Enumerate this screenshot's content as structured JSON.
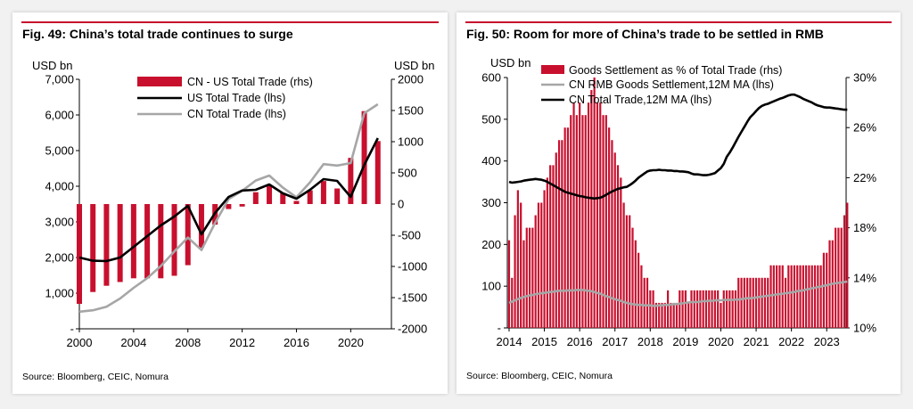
{
  "colors": {
    "accent": "#c8102e",
    "bar": "#c8102e",
    "black_line": "#000000",
    "grey_line": "#a6a6a6"
  },
  "panels": [
    {
      "title": "Fig. 49: China’s total trade continues to surge",
      "source": "Source: Bloomberg, CEIC, Nomura"
    },
    {
      "title": "Fig. 50: Room for more of China’s trade to be settled in RMB",
      "source": "Source: Bloomberg, CEIC, Nomura"
    }
  ],
  "chart_data": [
    {
      "type": "bar+line",
      "title": "Fig. 49: China’s total trade continues to surge",
      "y_left_label": "USD bn",
      "y_right_label": "USD bn",
      "y_left_ticks": [
        "-",
        "1,000",
        "2,000",
        "3,000",
        "4,000",
        "5,000",
        "6,000",
        "7,000"
      ],
      "y_right_ticks": [
        "-2000",
        "-1500",
        "-1000",
        "-500",
        "0",
        "500",
        "1000",
        "1500",
        "2000"
      ],
      "x_ticks": [
        "2000",
        "2004",
        "2008",
        "2012",
        "2016",
        "2020"
      ],
      "ylim_left": [
        0,
        7000
      ],
      "ylim_right": [
        -2000,
        2000
      ],
      "legend": [
        "CN - US Total Trade (rhs)",
        "US Total Trade (lhs)",
        "CN Total Trade (lhs)"
      ],
      "x": [
        2000,
        2001,
        2002,
        2003,
        2004,
        2005,
        2006,
        2007,
        2008,
        2009,
        2010,
        2011,
        2012,
        2013,
        2014,
        2015,
        2016,
        2017,
        2018,
        2019,
        2020,
        2021,
        2022
      ],
      "series": [
        {
          "name": "CN - US Total Trade (rhs)",
          "type": "bar",
          "axis": "right",
          "values": [
            -1600,
            -1410,
            -1310,
            -1250,
            -1190,
            -1190,
            -1190,
            -1150,
            -980,
            -700,
            -330,
            -80,
            -40,
            190,
            310,
            180,
            50,
            220,
            370,
            250,
            740,
            1490,
            1010
          ]
        },
        {
          "name": "US Total Trade (lhs)",
          "type": "line",
          "axis": "left",
          "values": [
            2000,
            1910,
            1900,
            2000,
            2300,
            2600,
            2900,
            3150,
            3450,
            2650,
            3250,
            3700,
            3880,
            3900,
            4050,
            3800,
            3650,
            3900,
            4200,
            4150,
            3700,
            4600,
            5350
          ]
        },
        {
          "name": "CN Total Trade (lhs)",
          "type": "line",
          "axis": "left",
          "values": [
            480,
            520,
            620,
            850,
            1150,
            1420,
            1760,
            2170,
            2560,
            2210,
            2970,
            3640,
            3870,
            4160,
            4300,
            3960,
            3690,
            4110,
            4620,
            4580,
            4650,
            6050,
            6300
          ]
        }
      ]
    },
    {
      "type": "bar+line",
      "title": "Fig. 50: Room for more of China’s trade to be settled in RMB",
      "y_left_label": "USD bn",
      "y_left_ticks": [
        "-",
        "100",
        "200",
        "300",
        "400",
        "500",
        "600"
      ],
      "y_right_ticks": [
        "10%",
        "14%",
        "18%",
        "22%",
        "26%",
        "30%"
      ],
      "x_ticks": [
        "2014",
        "2015",
        "2016",
        "2017",
        "2018",
        "2019",
        "2020",
        "2021",
        "2022",
        "2023"
      ],
      "ylim_left": [
        0,
        600
      ],
      "ylim_right": [
        10,
        30
      ],
      "legend": [
        "Goods Settlement as % of Total Trade (rhs)",
        "CN RMB Goods Settlement,12M MA (lhs)",
        "CN Total Trade,12M MA (lhs)"
      ],
      "x_start": 2014.0,
      "x_step": 0.08333,
      "series": [
        {
          "name": "Goods Settlement as % of Total Trade (rhs)",
          "type": "bar",
          "axis": "right",
          "values": [
            17,
            14,
            19,
            21,
            20,
            17,
            18,
            18,
            18,
            19,
            20,
            20,
            21,
            22,
            23,
            23,
            24,
            25,
            25,
            26,
            26,
            27,
            28,
            27,
            28,
            27,
            27,
            28,
            29,
            30,
            28,
            28,
            27,
            27,
            26,
            25,
            24,
            23,
            22,
            20,
            19,
            19,
            18,
            17,
            16,
            15,
            14,
            14,
            13,
            13,
            12,
            12,
            12,
            12,
            13,
            12,
            12,
            12,
            13,
            13,
            13,
            12,
            13,
            13,
            13,
            13,
            13,
            13,
            13,
            13,
            13,
            13,
            12,
            13,
            13,
            13,
            13,
            13,
            14,
            14,
            14,
            14,
            14,
            14,
            14,
            14,
            14,
            14,
            14,
            15,
            15,
            15,
            15,
            15,
            14,
            15,
            15,
            15,
            15,
            15,
            15,
            15,
            15,
            15,
            15,
            15,
            15,
            16,
            16,
            17,
            17,
            18,
            18,
            18,
            19,
            20
          ]
        },
        {
          "name": "CN RMB Goods Settlement,12M MA (lhs)",
          "type": "line",
          "axis": "left",
          "values": [
            60,
            63,
            66,
            69,
            72,
            74,
            76,
            78,
            79,
            81,
            82,
            83,
            84,
            85,
            86,
            87,
            88,
            89,
            89,
            89,
            90,
            90,
            90,
            91,
            91,
            91,
            90,
            89,
            88,
            86,
            84,
            82,
            79,
            76,
            74,
            71,
            69,
            67,
            65,
            62,
            60,
            58,
            57,
            56,
            55,
            55,
            54,
            54,
            54,
            53,
            53,
            54,
            54,
            55,
            55,
            56,
            57,
            57,
            58,
            59,
            60,
            61,
            62,
            62,
            62,
            63,
            64,
            64,
            65,
            65,
            66,
            66,
            66,
            67,
            67,
            67,
            67,
            68,
            68,
            69,
            70,
            71,
            71,
            72,
            73,
            74,
            75,
            76,
            77,
            78,
            79,
            80,
            81,
            82,
            83,
            84,
            85,
            86,
            88,
            89,
            90,
            92,
            93,
            95,
            96,
            98,
            99,
            101,
            102,
            104,
            106,
            107,
            108,
            109,
            110,
            111
          ]
        },
        {
          "name": "CN Total Trade,12M MA (lhs)",
          "type": "line",
          "axis": "left",
          "values": [
            350,
            348,
            349,
            350,
            351,
            353,
            354,
            355,
            356,
            357,
            356,
            355,
            353,
            350,
            346,
            342,
            338,
            334,
            330,
            326,
            324,
            322,
            320,
            318,
            316,
            315,
            313,
            312,
            311,
            310,
            311,
            312,
            315,
            319,
            323,
            327,
            330,
            333,
            335,
            337,
            338,
            342,
            347,
            353,
            360,
            365,
            370,
            375,
            377,
            378,
            378,
            379,
            378,
            378,
            377,
            377,
            376,
            376,
            375,
            375,
            374,
            373,
            370,
            368,
            368,
            367,
            366,
            366,
            367,
            369,
            371,
            377,
            383,
            393,
            410,
            420,
            432,
            445,
            458,
            470,
            482,
            494,
            505,
            512,
            520,
            527,
            532,
            535,
            537,
            540,
            543,
            546,
            549,
            551,
            554,
            557,
            559,
            559,
            556,
            553,
            549,
            546,
            543,
            540,
            536,
            533,
            531,
            529,
            528,
            528,
            527,
            526,
            525,
            524,
            523,
            523
          ]
        }
      ]
    }
  ]
}
